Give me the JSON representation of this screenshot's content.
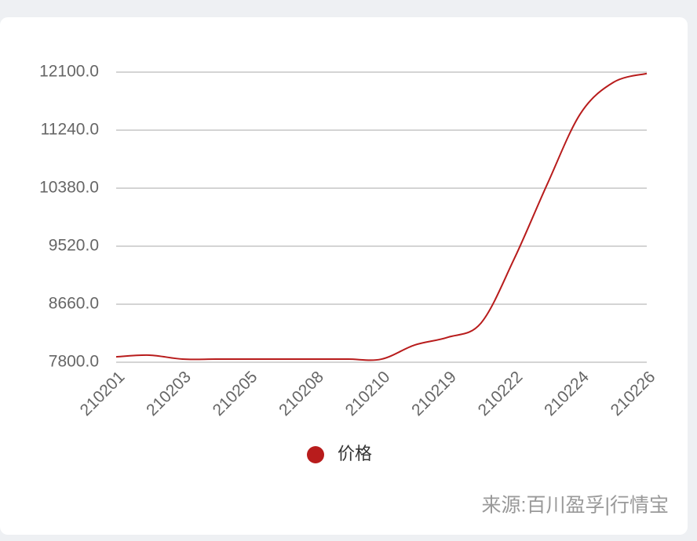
{
  "chart_data": {
    "type": "line",
    "categories": [
      "210201",
      null,
      "210203",
      null,
      "210205",
      null,
      "210208",
      null,
      "210210",
      null,
      "210219",
      null,
      "210222",
      null,
      "210224",
      null,
      "210226"
    ],
    "series": [
      {
        "name": "价格",
        "color": "#b81c1c",
        "values": [
          7880,
          7905,
          7846,
          7846,
          7846,
          7846,
          7846,
          7846,
          7846,
          8055,
          8170,
          8380,
          9330,
          10440,
          11485,
          11950,
          12080
        ]
      }
    ],
    "ylim": [
      7800,
      12100
    ],
    "yticks": [
      {
        "value": 7800,
        "label": "7800.0"
      },
      {
        "value": 8660,
        "label": "8660.0"
      },
      {
        "value": 9520,
        "label": "9520.0"
      },
      {
        "value": 10380,
        "label": "10380.0"
      },
      {
        "value": 11240,
        "label": "11240.0"
      },
      {
        "value": 12100,
        "label": "12100.0"
      }
    ],
    "grid": true,
    "legend": "bottom",
    "source": "来源:百川盈孚|行情宝"
  }
}
